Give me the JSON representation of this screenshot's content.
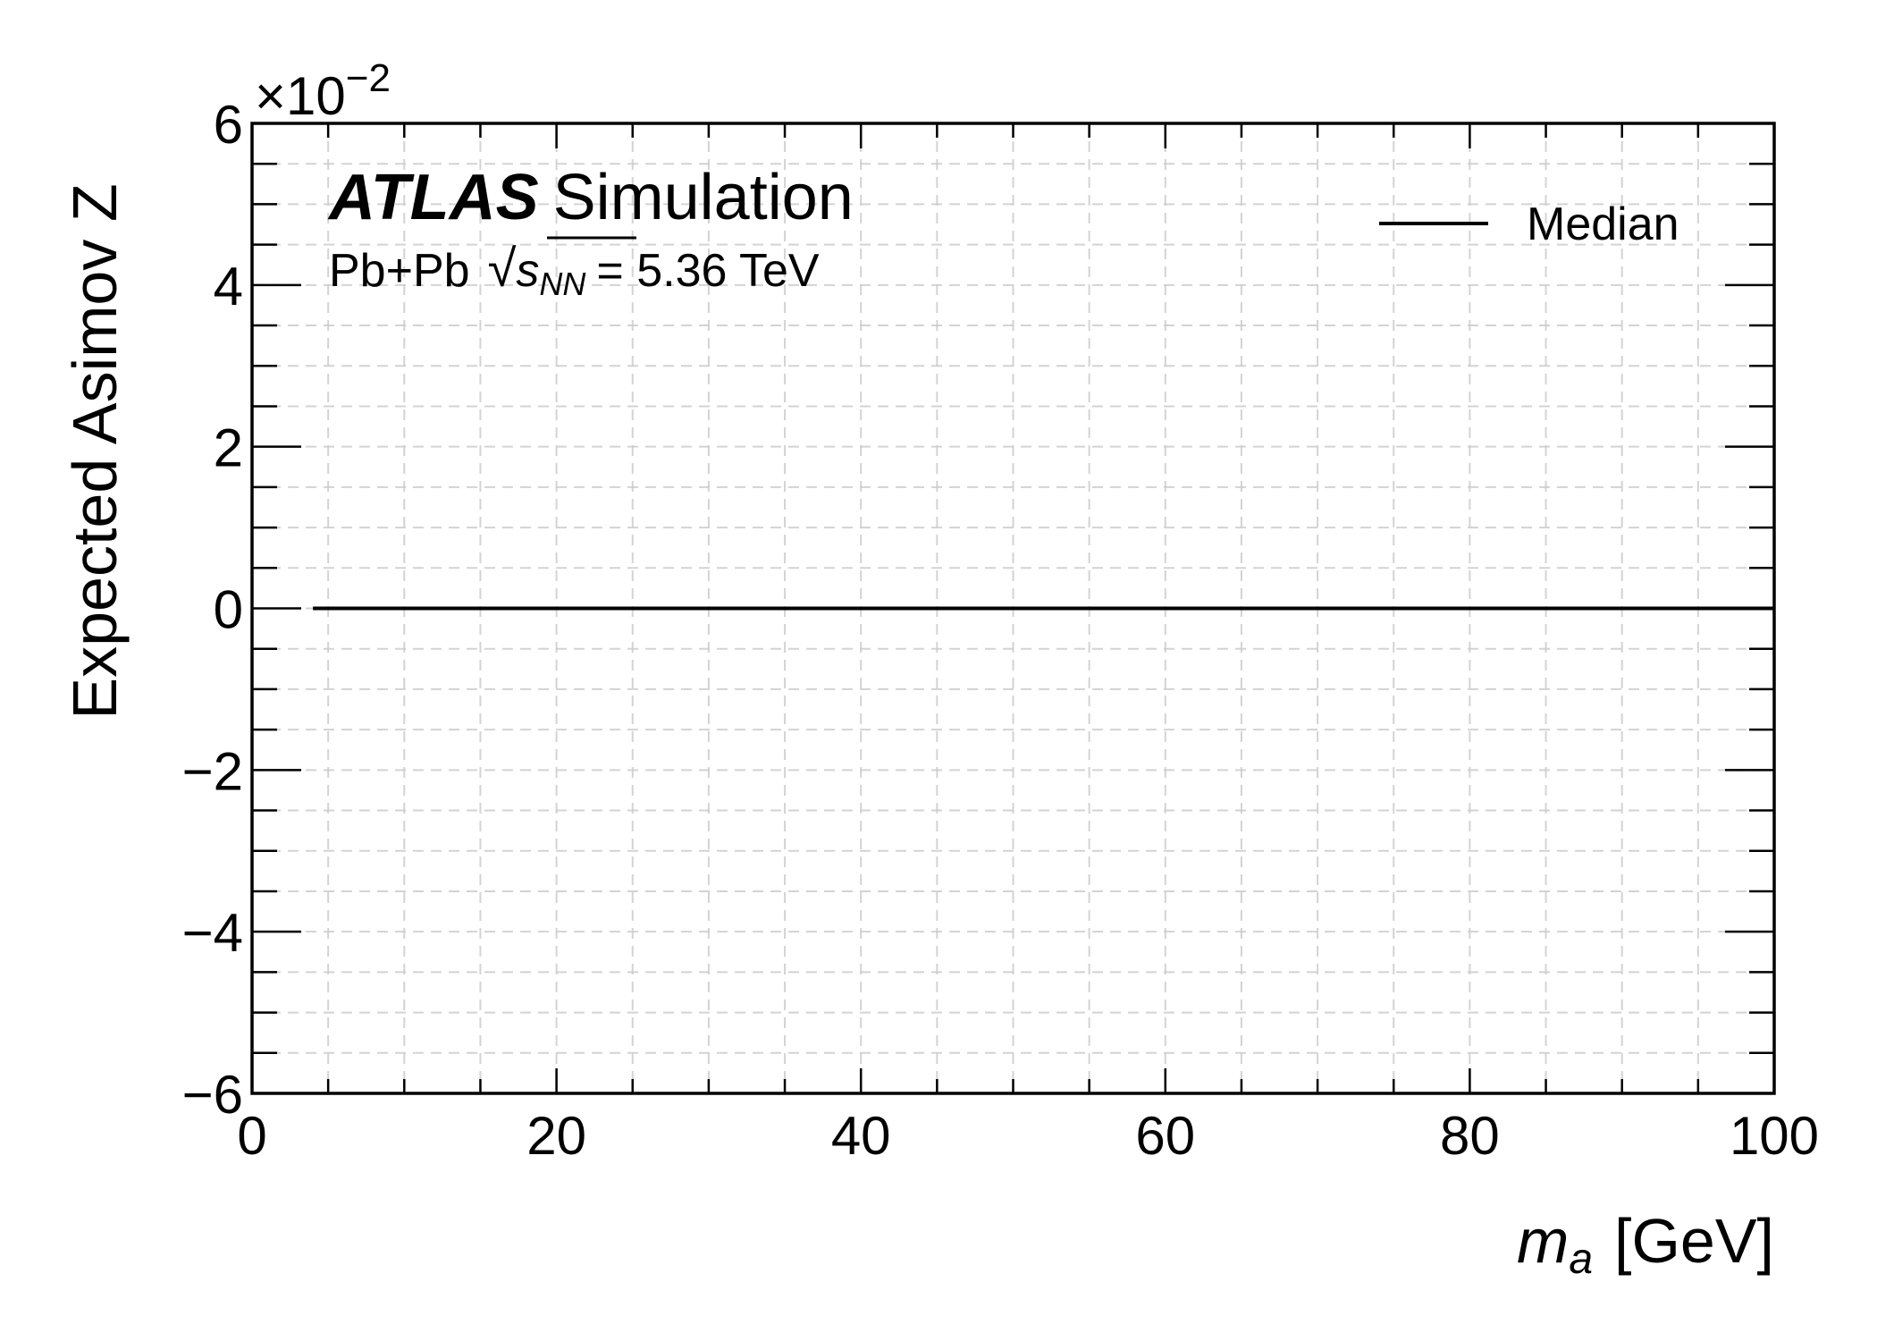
{
  "chart_data": {
    "type": "line",
    "title": "",
    "experiment": "ATLAS",
    "label": "Simulation",
    "subtitle": {
      "prefix": "Pb+Pb",
      "sqrt_symbol": "√",
      "variable": "s",
      "subscript": "NN",
      "suffix": "= 5.36 TeV"
    },
    "xlabel": {
      "symbol": "m",
      "subscript": "a",
      "unit": "[GeV]"
    },
    "ylabel": "Expected Asimov Z",
    "multiplier": {
      "base": "×10",
      "exponent": "−2"
    },
    "xlim": [
      0,
      100
    ],
    "ylim": [
      -6,
      6
    ],
    "y_scale_factor": 0.01,
    "x_ticks": [
      0,
      20,
      40,
      60,
      80,
      100
    ],
    "x_tick_labels": [
      "0",
      "20",
      "40",
      "60",
      "80",
      "100"
    ],
    "y_ticks": [
      -6,
      -4,
      -2,
      0,
      2,
      4,
      6
    ],
    "y_tick_labels": [
      "−6",
      "−4",
      "−2",
      "0",
      "2",
      "4",
      "6"
    ],
    "x_minor_step": 5,
    "y_minor_step": 0.5,
    "grid": true,
    "legend_placement": "top-right",
    "series": [
      {
        "name": "Median",
        "color": "#000000",
        "x": [
          4,
          100
        ],
        "y": [
          0,
          0
        ]
      }
    ]
  }
}
